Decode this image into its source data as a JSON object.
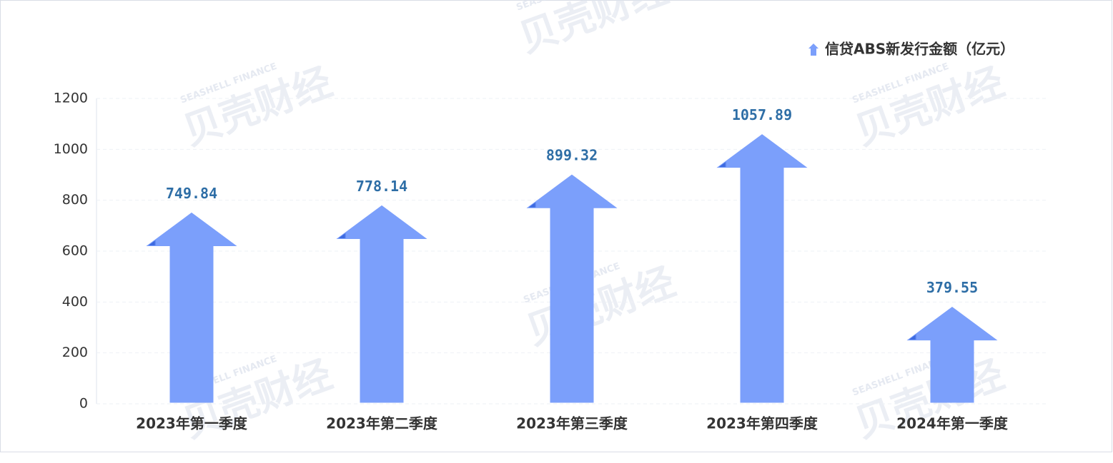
{
  "chart_data": {
    "type": "arrow-bar",
    "categories": [
      "2023年第一季度",
      "2023年第二季度",
      "2023年第三季度",
      "2023年第四季度",
      "2024年第一季度"
    ],
    "series": [
      {
        "name": "信贷ABS新发行金额（亿元）",
        "color": "#7b9ffb",
        "values": [
          749.84,
          778.14,
          899.32,
          1057.89,
          379.55
        ]
      }
    ],
    "ylim": [
      0,
      1200
    ],
    "yticks": [
      0,
      200,
      400,
      600,
      800,
      1000,
      1200
    ],
    "grid": true,
    "legend": "top-right",
    "watermark": [
      "贝壳财经",
      "SEASHELL FINANCE"
    ]
  }
}
